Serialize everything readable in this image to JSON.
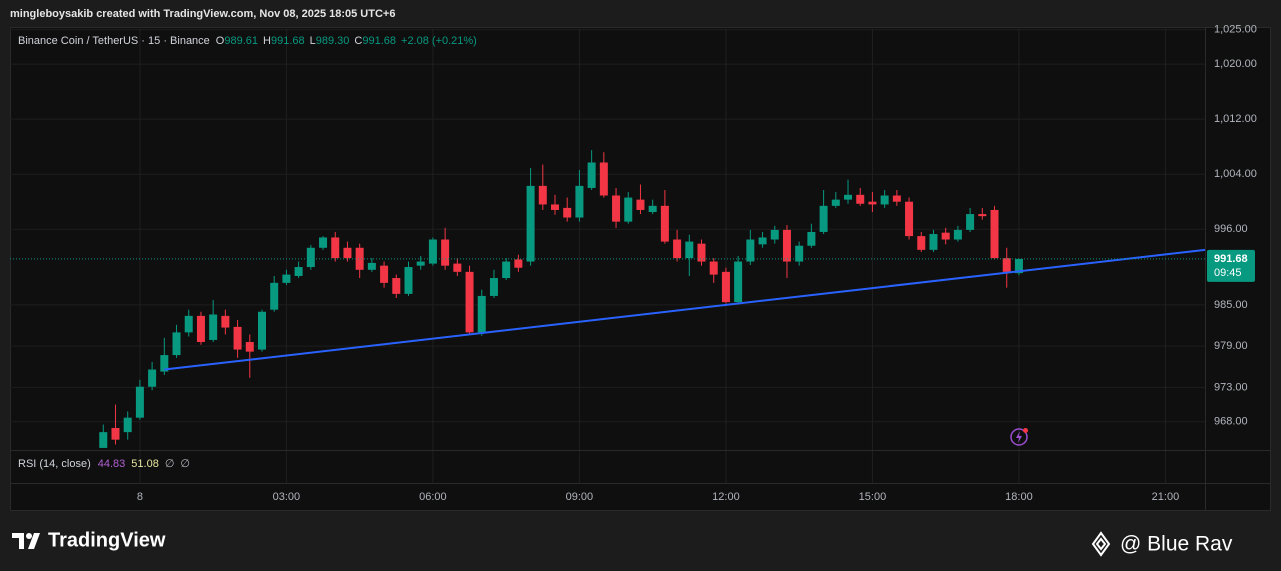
{
  "header": {
    "text": "mingleboysakib created with TradingView.com, Nov 08, 2025 18:05 UTC+6"
  },
  "chart_data": {
    "type": "candlestick",
    "title": "Binance Coin / TetherUS · 15 · Binance",
    "legend": [
      {
        "label": "O",
        "value": "989.61"
      },
      {
        "label": "H",
        "value": "991.68"
      },
      {
        "label": "L",
        "value": "989.30"
      },
      {
        "label": "C",
        "value": "991.68"
      }
    ],
    "change": "+2.08 (+0.21%)",
    "up_color": "#089981",
    "down_color": "#f23645",
    "grid": true,
    "x": [
      -0.75,
      -0.5,
      -0.25,
      0,
      0.25,
      0.5,
      0.75,
      1,
      1.25,
      1.5,
      1.75,
      2,
      2.25,
      2.5,
      2.75,
      3,
      3.25,
      3.5,
      3.75,
      4,
      4.25,
      4.5,
      4.75,
      5,
      5.25,
      5.5,
      5.75,
      6,
      6.25,
      6.5,
      6.75,
      7,
      7.25,
      7.5,
      7.75,
      8,
      8.25,
      8.5,
      8.75,
      9,
      9.25,
      9.5,
      9.75,
      10,
      10.25,
      10.5,
      10.75,
      11,
      11.25,
      11.5,
      11.75,
      12,
      12.25,
      12.5,
      12.75,
      13,
      13.25,
      13.5,
      13.75,
      14,
      14.25,
      14.5,
      14.75,
      15,
      15.25,
      15.5,
      15.75,
      16,
      16.25,
      16.5,
      16.75,
      17,
      17.25,
      17.5,
      17.75,
      18
    ],
    "open": [
      964.2,
      967.1,
      966.5,
      968.6,
      973.1,
      975.3,
      977.7,
      981.0,
      983.4,
      979.9,
      983.4,
      981.8,
      979.6,
      978.5,
      984.3,
      988.2,
      989.2,
      990.5,
      993.3,
      994.8,
      993.3,
      993.3,
      990.1,
      990.7,
      988.9,
      986.6,
      990.7,
      991.0,
      994.5,
      991.0,
      989.8,
      981.0,
      986.3,
      988.9,
      991.6,
      991.3,
      1002.3,
      999.6,
      999.1,
      997.7,
      1002.0,
      1005.7,
      1000.9,
      997.1,
      1000.3,
      998.5,
      999.4,
      994.5,
      991.8,
      993.9,
      991.3,
      989.8,
      985.4,
      991.3,
      993.8,
      994.5,
      995.9,
      991.3,
      993.6,
      995.6,
      999.4,
      1000.3,
      1001.0,
      1000.0,
      999.6,
      1000.9,
      1000.0,
      995.0,
      993.0,
      995.5,
      994.5,
      995.9,
      998.2,
      998.8,
      991.8,
      989.61
    ],
    "high": [
      967.6,
      970.5,
      969.5,
      974.1,
      976.7,
      980.2,
      982.1,
      984.3,
      984.0,
      985.7,
      984.3,
      982.8,
      980.7,
      984.3,
      989.2,
      990.1,
      991.3,
      993.7,
      995.0,
      995.6,
      994.2,
      993.9,
      991.8,
      991.3,
      989.4,
      991.3,
      992.1,
      994.8,
      996.2,
      991.8,
      990.7,
      987.2,
      990.1,
      991.8,
      992.3,
      1004.9,
      1005.4,
      1001.0,
      1000.6,
      1004.6,
      1007.5,
      1007.2,
      1002.0,
      1001.4,
      1002.5,
      1000.3,
      1001.7,
      995.9,
      995.2,
      994.5,
      991.8,
      990.4,
      992.1,
      995.9,
      995.6,
      996.5,
      996.6,
      994.2,
      996.8,
      1001.7,
      1001.4,
      1003.2,
      1002.0,
      1001.4,
      1001.7,
      1001.7,
      1000.6,
      995.6,
      995.9,
      996.2,
      996.5,
      999.1,
      999.1,
      999.4,
      993.3,
      991.68
    ],
    "low": [
      964.2,
      964.7,
      965.4,
      968.3,
      972.6,
      974.8,
      977.3,
      980.4,
      979.2,
      979.6,
      980.7,
      977.3,
      974.4,
      978.2,
      984.0,
      987.9,
      988.9,
      990.1,
      993.0,
      991.3,
      991.3,
      988.9,
      989.8,
      987.5,
      986.0,
      986.3,
      990.1,
      990.7,
      990.1,
      989.2,
      980.7,
      980.5,
      986.0,
      988.6,
      989.8,
      990.7,
      998.8,
      998.1,
      997.1,
      997.1,
      1001.7,
      1000.6,
      996.2,
      996.8,
      998.2,
      998.2,
      993.9,
      991.3,
      989.2,
      990.7,
      988.2,
      985.2,
      985.2,
      990.8,
      993.3,
      993.9,
      988.9,
      990.7,
      993.3,
      995.3,
      999.1,
      999.7,
      999.4,
      998.5,
      999.1,
      999.4,
      994.5,
      992.7,
      992.7,
      993.8,
      994.2,
      995.6,
      997.4,
      991.6,
      987.5,
      989.3
    ],
    "close": [
      966.5,
      965.4,
      968.6,
      973.1,
      975.6,
      977.7,
      981.0,
      983.4,
      979.6,
      983.6,
      981.7,
      978.5,
      978.2,
      984.0,
      988.2,
      989.4,
      990.5,
      993.3,
      994.8,
      991.8,
      991.8,
      990.1,
      991.1,
      988.2,
      986.6,
      990.5,
      991.3,
      994.5,
      990.7,
      989.8,
      981.0,
      986.3,
      988.9,
      991.3,
      990.4,
      1002.3,
      999.6,
      998.8,
      997.7,
      1002.3,
      1005.7,
      1000.9,
      997.1,
      1000.6,
      998.8,
      999.4,
      994.2,
      991.8,
      994.2,
      991.3,
      989.4,
      985.4,
      991.3,
      994.5,
      994.8,
      995.9,
      991.3,
      993.6,
      995.6,
      999.4,
      1000.3,
      1001.0,
      999.7,
      999.6,
      1000.9,
      1000.0,
      995.0,
      993.0,
      995.3,
      994.5,
      995.9,
      998.2,
      997.9,
      991.8,
      989.8,
      991.68
    ],
    "xlim": [
      -2.66,
      21.81
    ],
    "xticks": [
      {
        "value": 0,
        "label": "8"
      },
      {
        "value": 3,
        "label": "03:00"
      },
      {
        "value": 6,
        "label": "06:00"
      },
      {
        "value": 9,
        "label": "09:00"
      },
      {
        "value": 12,
        "label": "12:00"
      },
      {
        "value": 15,
        "label": "15:00"
      },
      {
        "value": 18,
        "label": "18:00"
      },
      {
        "value": 21,
        "label": "21:00"
      }
    ],
    "ylim": [
      963.9,
      1025.4
    ],
    "yticks": [
      {
        "value": 1025,
        "label": "1,025.00"
      },
      {
        "value": 1020,
        "label": "1,020.00"
      },
      {
        "value": 1012,
        "label": "1,012.00"
      },
      {
        "value": 1004,
        "label": "1,004.00"
      },
      {
        "value": 996,
        "label": "996.00"
      },
      {
        "value": 985,
        "label": "985.00"
      },
      {
        "value": 979,
        "label": "979.00"
      },
      {
        "value": 973,
        "label": "973.00"
      },
      {
        "value": 968,
        "label": "968.00"
      }
    ],
    "trendline": {
      "x": [
        0.5,
        21.81
      ],
      "values": [
        975.6,
        993.0
      ],
      "color": "#2962ff"
    },
    "last_price": 991.68,
    "countdown": "09:45",
    "rsi": {
      "label": "RSI (14, close)",
      "values": [
        44.83,
        51.08,
        "∅",
        "∅"
      ],
      "colors": [
        "#b15fd0",
        "#e8e6a0",
        "#b2b5be",
        "#b2b5be"
      ]
    }
  },
  "footer": {
    "brand": "TradingView",
    "watermark": "@ Blue Rav"
  }
}
